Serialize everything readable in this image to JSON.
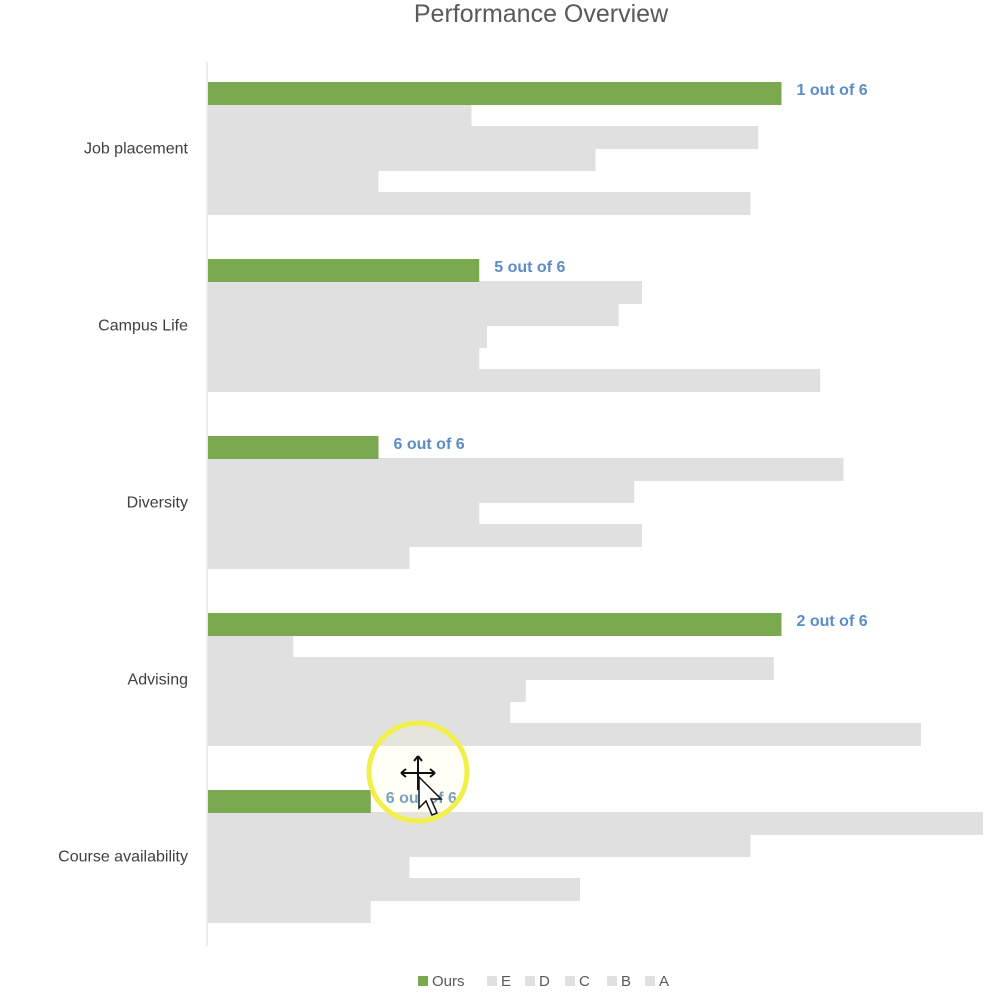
{
  "chart_data": {
    "type": "bar",
    "orientation": "horizontal",
    "title": "Performance Overview",
    "xlabel": "",
    "ylabel": "",
    "xlim": [
      0,
      100
    ],
    "grid": false,
    "legend_position": "bottom",
    "categories": [
      "Job placement",
      "Campus Life",
      "Diversity",
      "Advising",
      "Course availability"
    ],
    "series": [
      {
        "name": "Ours",
        "color": "#7ba94f",
        "values": [
          74,
          35,
          22,
          74,
          21
        ]
      },
      {
        "name": "E",
        "color": "#e0e0e0",
        "values": [
          34,
          56,
          82,
          11,
          100
        ]
      },
      {
        "name": "D",
        "color": "#e0e0e0",
        "values": [
          71,
          53,
          55,
          73,
          70
        ]
      },
      {
        "name": "C",
        "color": "#e0e0e0",
        "values": [
          50,
          36,
          35,
          41,
          26
        ]
      },
      {
        "name": "B",
        "color": "#e0e0e0",
        "values": [
          22,
          35,
          56,
          39,
          48
        ]
      },
      {
        "name": "A",
        "color": "#e0e0e0",
        "values": [
          70,
          79,
          26,
          92,
          21
        ]
      }
    ],
    "data_labels": [
      "1 out of 6",
      "5 out of 6",
      "6 out of 6",
      "2 out of 6",
      "6 out of 6"
    ],
    "label_color": "#5b8cc5"
  },
  "cursor": {
    "highlight_color": "#f2ef4a",
    "icon": "move-cursor-icon"
  }
}
